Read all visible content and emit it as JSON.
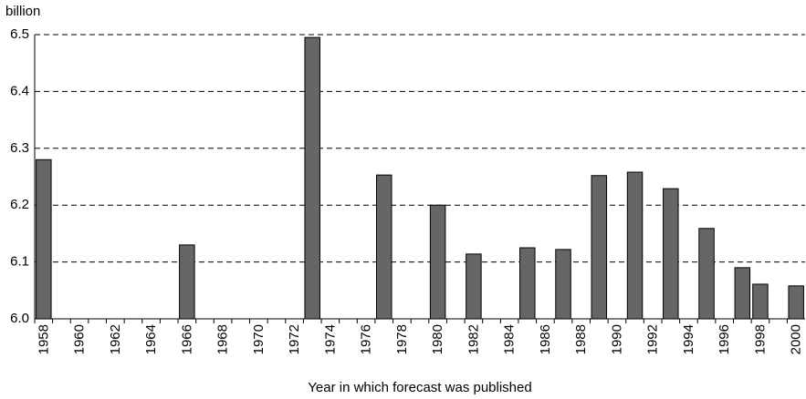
{
  "chart_data": {
    "type": "bar",
    "y_label": "billion",
    "x_label": "Year in which forecast was published",
    "categories": [
      "1958",
      null,
      "1960",
      null,
      "1962",
      null,
      "1964",
      null,
      "1966",
      null,
      "1968",
      null,
      "1970",
      null,
      "1972",
      null,
      "1974",
      null,
      "1976",
      null,
      "1978",
      null,
      "1980",
      null,
      "1982",
      null,
      "1984",
      null,
      "1986",
      null,
      "1988",
      null,
      "1990",
      null,
      "1992",
      null,
      "1994",
      null,
      "1996",
      null,
      "1998",
      null,
      "2000"
    ],
    "values": [
      6.28,
      null,
      null,
      null,
      null,
      null,
      null,
      null,
      6.13,
      null,
      null,
      null,
      null,
      null,
      null,
      6.495,
      null,
      null,
      null,
      6.253,
      null,
      null,
      6.2,
      null,
      6.114,
      null,
      null,
      6.125,
      null,
      6.122,
      null,
      6.252,
      null,
      6.258,
      null,
      6.229,
      null,
      6.159,
      null,
      6.09,
      6.061,
      null,
      6.058
    ],
    "color": "#666666",
    "ylim": [
      6.0,
      6.5
    ],
    "yticks": [
      {
        "value": 6.0,
        "label": "6.0"
      },
      6.1,
      6.2,
      6.3,
      6.4,
      6.5
    ],
    "grid": true
  }
}
